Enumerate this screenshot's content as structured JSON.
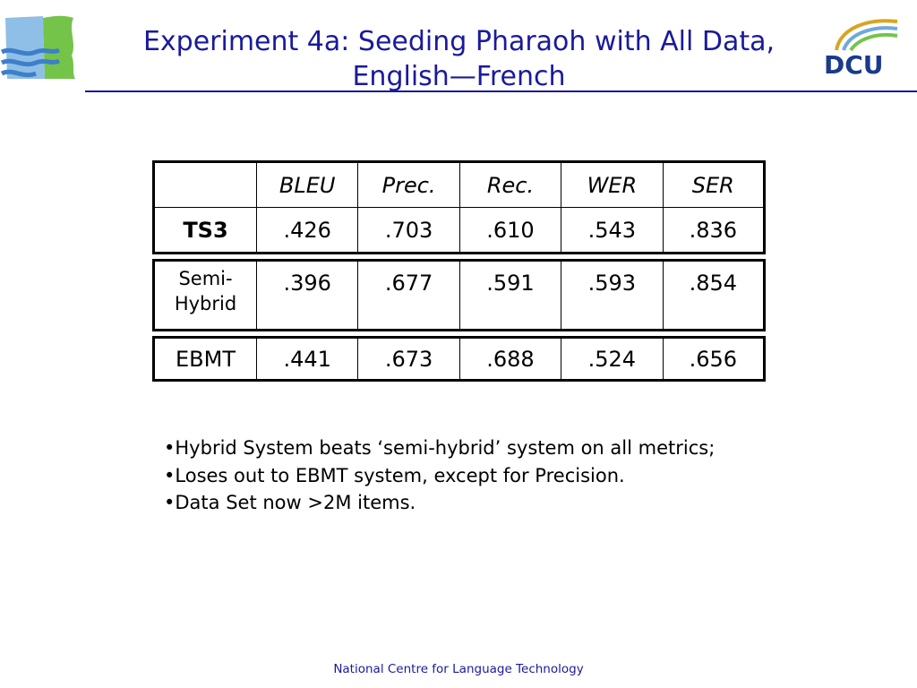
{
  "title": {
    "line1": "Experiment 4a: Seeding Pharaoh with All Data,",
    "line2": "English—French"
  },
  "logos": {
    "left": "ncl-wave-logo",
    "right": "dcu-logo",
    "right_text": "DCU"
  },
  "colors": {
    "title": "#1a1a9c",
    "rule": "#1a1a9c",
    "logo_blue": "#6fa8dc",
    "logo_green": "#74c44a",
    "logo_gold": "#d9a520"
  },
  "table": {
    "headers": [
      "",
      "BLEU",
      "Prec.",
      "Rec.",
      "WER",
      "SER"
    ],
    "rows": [
      {
        "system": "TS3",
        "values": [
          ".426",
          ".703",
          ".610",
          ".543",
          ".836"
        ]
      },
      {
        "system_line1": "Semi-",
        "system_line2": "Hybrid",
        "values": [
          ".396",
          ".677",
          ".591",
          ".593",
          ".854"
        ]
      },
      {
        "system": "EBMT",
        "values": [
          ".441",
          ".673",
          ".688",
          ".524",
          ".656"
        ]
      }
    ]
  },
  "bullets": [
    "Hybrid System beats ‘semi-hybrid’ system on all metrics;",
    "Loses out to EBMT system, except for Precision.",
    "Data Set now >2M items."
  ],
  "footer": "National Centre for Language Technology"
}
